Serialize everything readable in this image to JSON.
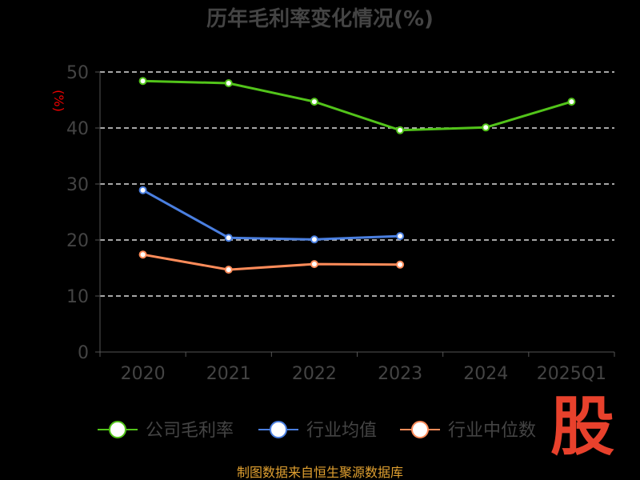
{
  "chart_data": {
    "type": "line",
    "title": "历年毛利率变化情况(%)",
    "ylabel": "(%)",
    "xlabel": "",
    "categories": [
      "2020",
      "2021",
      "2022",
      "2023",
      "2024",
      "2025Q1"
    ],
    "ylim": [
      0,
      50
    ],
    "yticks": [
      0,
      10,
      20,
      30,
      40,
      50
    ],
    "grid": true,
    "legend": "bottom",
    "series": [
      {
        "name": "公司毛利率",
        "color": "#52c41a",
        "values": [
          48.4,
          48.0,
          44.7,
          39.6,
          40.1,
          44.7
        ]
      },
      {
        "name": "行业均值",
        "color": "#4a7fe0",
        "values": [
          28.9,
          20.4,
          20.1,
          20.7,
          null,
          null
        ]
      },
      {
        "name": "行业中位数",
        "color": "#ff8c5a",
        "values": [
          17.4,
          14.7,
          15.7,
          15.6,
          null,
          null
        ]
      }
    ],
    "source": "制图数据来自恒生聚源数据库",
    "logo_text": "股"
  }
}
